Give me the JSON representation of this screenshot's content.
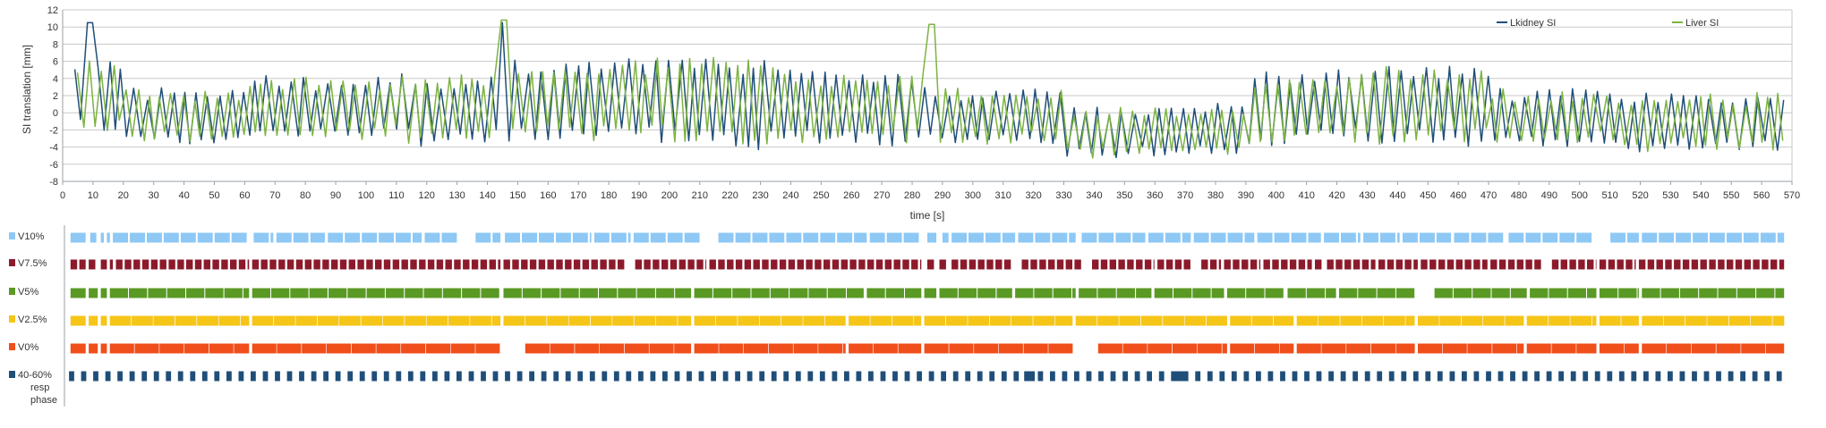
{
  "chart_data": [
    {
      "type": "line",
      "title": "",
      "xlabel": "time [s]",
      "ylabel": "SI translation [mm]",
      "xlim": [
        0,
        570
      ],
      "ylim": [
        -8,
        12
      ],
      "x_ticks": [
        0,
        10,
        20,
        30,
        40,
        50,
        60,
        70,
        80,
        90,
        100,
        110,
        120,
        130,
        140,
        150,
        160,
        170,
        180,
        190,
        200,
        210,
        220,
        230,
        240,
        250,
        260,
        270,
        280,
        290,
        300,
        310,
        320,
        330,
        340,
        350,
        360,
        370,
        380,
        390,
        400,
        410,
        420,
        430,
        440,
        450,
        460,
        470,
        480,
        490,
        500,
        510,
        520,
        530,
        540,
        550,
        560,
        570
      ],
      "y_ticks": [
        -8,
        -6,
        -4,
        -2,
        0,
        2,
        4,
        6,
        8,
        10,
        12
      ],
      "grid": true,
      "legend_position": "top-right",
      "series": [
        {
          "name": "Lkidney SI",
          "color": "#1f4e79",
          "period_s": 4.0,
          "segments": [
            {
              "start": 4,
              "end": 20,
              "baseline": 2.0,
              "amplitude": 4.0
            },
            {
              "start": 20,
              "end": 60,
              "baseline": -0.5,
              "amplitude": 3.0
            },
            {
              "start": 60,
              "end": 110,
              "baseline": 0.5,
              "amplitude": 3.3
            },
            {
              "start": 110,
              "end": 145,
              "baseline": 0.5,
              "amplitude": 3.6
            },
            {
              "start": 145,
              "end": 200,
              "baseline": 1.5,
              "amplitude": 4.4
            },
            {
              "start": 200,
              "end": 240,
              "baseline": 1.0,
              "amplitude": 4.6
            },
            {
              "start": 240,
              "end": 285,
              "baseline": 0.5,
              "amplitude": 3.8
            },
            {
              "start": 285,
              "end": 330,
              "baseline": -0.5,
              "amplitude": 3.0
            },
            {
              "start": 330,
              "end": 390,
              "baseline": -2.2,
              "amplitude": 2.7
            },
            {
              "start": 390,
              "end": 420,
              "baseline": 0.5,
              "amplitude": 3.8
            },
            {
              "start": 420,
              "end": 470,
              "baseline": 1.0,
              "amplitude": 4.2
            },
            {
              "start": 470,
              "end": 510,
              "baseline": -0.5,
              "amplitude": 3.0
            },
            {
              "start": 510,
              "end": 568,
              "baseline": -1.0,
              "amplitude": 3.0
            }
          ],
          "peaks": [
            {
              "x": 9,
              "y": 10.5
            },
            {
              "x": 145,
              "y": 10.5
            }
          ]
        },
        {
          "name": "Liver SI",
          "color": "#7cb342",
          "period_s": 3.8,
          "segments": [
            {
              "start": 4,
              "end": 20,
              "baseline": 2.0,
              "amplitude": 3.6
            },
            {
              "start": 20,
              "end": 60,
              "baseline": -0.5,
              "amplitude": 2.8
            },
            {
              "start": 60,
              "end": 110,
              "baseline": 0.5,
              "amplitude": 3.0
            },
            {
              "start": 110,
              "end": 145,
              "baseline": 0.5,
              "amplitude": 3.3
            },
            {
              "start": 145,
              "end": 200,
              "baseline": 1.5,
              "amplitude": 4.0
            },
            {
              "start": 200,
              "end": 240,
              "baseline": 1.5,
              "amplitude": 4.6
            },
            {
              "start": 240,
              "end": 285,
              "baseline": 0.5,
              "amplitude": 3.6
            },
            {
              "start": 285,
              "end": 330,
              "baseline": -0.5,
              "amplitude": 2.8
            },
            {
              "start": 330,
              "end": 390,
              "baseline": -2.2,
              "amplitude": 2.5
            },
            {
              "start": 390,
              "end": 420,
              "baseline": 0.5,
              "amplitude": 3.5
            },
            {
              "start": 420,
              "end": 470,
              "baseline": 1.0,
              "amplitude": 4.0
            },
            {
              "start": 470,
              "end": 510,
              "baseline": -0.5,
              "amplitude": 2.8
            },
            {
              "start": 510,
              "end": 568,
              "baseline": -1.0,
              "amplitude": 2.8
            }
          ],
          "peaks": [
            {
              "x": 145,
              "y": 10.8
            },
            {
              "x": 286,
              "y": 10.3
            }
          ]
        }
      ]
    },
    {
      "type": "timeline",
      "xlim": [
        0,
        570
      ],
      "rows": [
        {
          "label": "V10%",
          "color": "#8ec8f5",
          "dash_s": 5.0,
          "gap_s": 0.6,
          "gaps": [
            [
              7,
              8.5
            ],
            [
              10.5,
              12
            ],
            [
              13,
              14
            ],
            [
              15,
              16
            ],
            [
              61,
              62.5
            ],
            [
              69,
              70
            ],
            [
              86,
              87
            ],
            [
              118,
              119
            ],
            [
              130,
              131
            ],
            [
              144,
              145.5
            ],
            [
              174,
              175
            ],
            [
              187,
              188
            ],
            [
              210,
              211
            ],
            [
              265,
              266
            ],
            [
              283,
              285
            ],
            [
              288,
              290
            ],
            [
              292,
              293
            ],
            [
              314,
              315
            ],
            [
              334,
              336
            ],
            [
              357,
              358
            ],
            [
              372,
              373
            ],
            [
              393,
              394
            ],
            [
              415,
              416
            ],
            [
              428,
              429
            ],
            [
              441,
              442
            ],
            [
              458,
              459
            ],
            [
              476,
              477
            ],
            [
              505,
              506
            ],
            [
              520,
              521
            ]
          ]
        },
        {
          "label": "V7.5%",
          "color": "#8b1a2b",
          "dash_s": 2.2,
          "gap_s": 0.7,
          "gaps": [
            [
              7,
              8
            ],
            [
              11,
              12
            ],
            [
              14,
              15
            ],
            [
              16,
              17
            ],
            [
              61,
              62
            ],
            [
              144,
              145
            ],
            [
              185,
              186
            ],
            [
              212,
              213
            ],
            [
              283,
              285
            ],
            [
              288,
              289
            ],
            [
              292,
              293
            ],
            [
              313,
              314
            ],
            [
              336,
              337
            ],
            [
              360,
              361
            ],
            [
              372,
              373
            ],
            [
              382,
              383
            ],
            [
              395,
              396
            ],
            [
              412,
              413
            ],
            [
              416,
              417
            ],
            [
              433,
              434
            ],
            [
              447,
              448
            ],
            [
              470,
              471
            ],
            [
              488,
              489
            ],
            [
              506,
              507
            ],
            [
              519,
              520
            ]
          ]
        },
        {
          "label": "V5%",
          "color": "#5a9a24",
          "dash_s": 6.0,
          "gap_s": 0.3,
          "gaps": [
            [
              7,
              8
            ],
            [
              11,
              12
            ],
            [
              14,
              15
            ],
            [
              61,
              62
            ],
            [
              144,
              145
            ],
            [
              207,
              208
            ],
            [
              264,
              265
            ],
            [
              283,
              284
            ],
            [
              288,
              289
            ],
            [
              313,
              314
            ],
            [
              334,
              335
            ],
            [
              359,
              360
            ],
            [
              383,
              384
            ],
            [
              403,
              404
            ],
            [
              420,
              421
            ],
            [
              446,
              447
            ],
            [
              483,
              484
            ],
            [
              506,
              507
            ],
            [
              520,
              521
            ]
          ]
        },
        {
          "label": "V2.5%",
          "color": "#f5c518",
          "dash_s": 7.0,
          "gap_s": 0.2,
          "gaps": [
            [
              7,
              8
            ],
            [
              11,
              12
            ],
            [
              14,
              15
            ],
            [
              61,
              62
            ],
            [
              144,
              145
            ],
            [
              207,
              208
            ],
            [
              258,
              259
            ],
            [
              283,
              284
            ],
            [
              333,
              334
            ],
            [
              384,
              385
            ],
            [
              406,
              407
            ],
            [
              446,
              447
            ],
            [
              482,
              483
            ],
            [
              506,
              507
            ],
            [
              520,
              521
            ]
          ]
        },
        {
          "label": "V0%",
          "color": "#f04e1a",
          "dash_s": 8.0,
          "gap_s": 0.2,
          "gaps": [
            [
              7,
              8
            ],
            [
              11,
              12
            ],
            [
              14,
              15
            ],
            [
              61,
              62
            ],
            [
              144,
              145
            ],
            [
              207,
              208
            ],
            [
              258,
              259
            ],
            [
              283,
              284
            ],
            [
              333,
              334
            ],
            [
              384,
              385
            ],
            [
              406,
              407
            ],
            [
              446,
              447
            ],
            [
              482,
              483
            ],
            [
              506,
              507
            ],
            [
              520,
              521
            ]
          ]
        },
        {
          "label_lines": [
            "40-60%",
            "resp",
            "phase"
          ],
          "color": "#1f4e79",
          "pulse_period_s": 4.0,
          "pulse_width_s": 1.7,
          "wide_blocks": [
            [
              317,
              320.5
            ],
            [
              367,
              371
            ]
          ]
        }
      ]
    }
  ]
}
